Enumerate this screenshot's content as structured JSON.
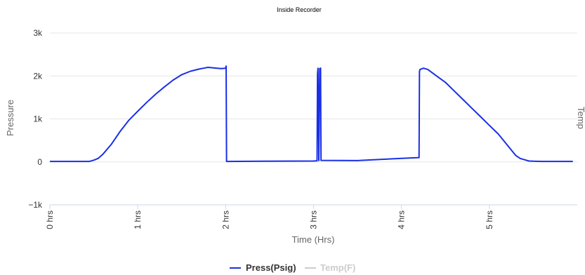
{
  "chart_data": {
    "type": "line",
    "title": "Inside Recorder",
    "xlabel": "Time (Hrs)",
    "ylabel": "Pressure",
    "y2label": "Temp",
    "xlim": [
      0,
      6
    ],
    "ylim": [
      -1000,
      3000
    ],
    "x_ticks": [
      {
        "value": 0,
        "label": "0 hrs"
      },
      {
        "value": 1,
        "label": "1 hrs"
      },
      {
        "value": 2,
        "label": "2 hrs"
      },
      {
        "value": 3,
        "label": "3 hrs"
      },
      {
        "value": 4,
        "label": "4 hrs"
      },
      {
        "value": 5,
        "label": "5 hrs"
      }
    ],
    "y_ticks": [
      {
        "value": -1000,
        "label": "−1k"
      },
      {
        "value": 0,
        "label": "0"
      },
      {
        "value": 1000,
        "label": "1k"
      },
      {
        "value": 2000,
        "label": "2k"
      },
      {
        "value": 3000,
        "label": "3k"
      }
    ],
    "grid": true,
    "legend_position": "bottom-center",
    "colors": {
      "press": "#1a2fe6",
      "temp": "#cccccc",
      "grid": "#e6e6e6",
      "axis": "#ccd6eb"
    },
    "series": [
      {
        "name": "Press(Psig)",
        "color": "#1a2fe6",
        "visible": true,
        "x": [
          0,
          0.45,
          0.5,
          0.55,
          0.6,
          0.7,
          0.8,
          0.9,
          1.0,
          1.1,
          1.2,
          1.3,
          1.4,
          1.5,
          1.6,
          1.7,
          1.75,
          1.8,
          1.85,
          1.9,
          1.95,
          2.0,
          2.005,
          2.01,
          2.02,
          2.5,
          3.0,
          3.04,
          3.045,
          3.05,
          3.06,
          3.07,
          3.08,
          3.085,
          3.09,
          3.5,
          4.0,
          4.2,
          4.205,
          4.21,
          4.25,
          4.3,
          4.4,
          4.5,
          4.6,
          4.7,
          4.8,
          4.9,
          5.0,
          5.1,
          5.2,
          5.3,
          5.35,
          5.4,
          5.45,
          5.5,
          5.6,
          5.8,
          5.95
        ],
        "y": [
          10,
          10,
          40,
          80,
          170,
          410,
          710,
          970,
          1180,
          1380,
          1570,
          1740,
          1900,
          2030,
          2110,
          2160,
          2180,
          2200,
          2190,
          2180,
          2170,
          2180,
          2230,
          10,
          10,
          15,
          20,
          25,
          2050,
          2180,
          30,
          2170,
          2180,
          35,
          35,
          30,
          80,
          100,
          2100,
          2150,
          2180,
          2150,
          2000,
          1850,
          1650,
          1450,
          1250,
          1050,
          850,
          650,
          400,
          150,
          80,
          50,
          20,
          15,
          10,
          10,
          10
        ]
      },
      {
        "name": "Temp(F)",
        "color": "#cccccc",
        "visible": false,
        "x": [],
        "y": []
      }
    ]
  }
}
